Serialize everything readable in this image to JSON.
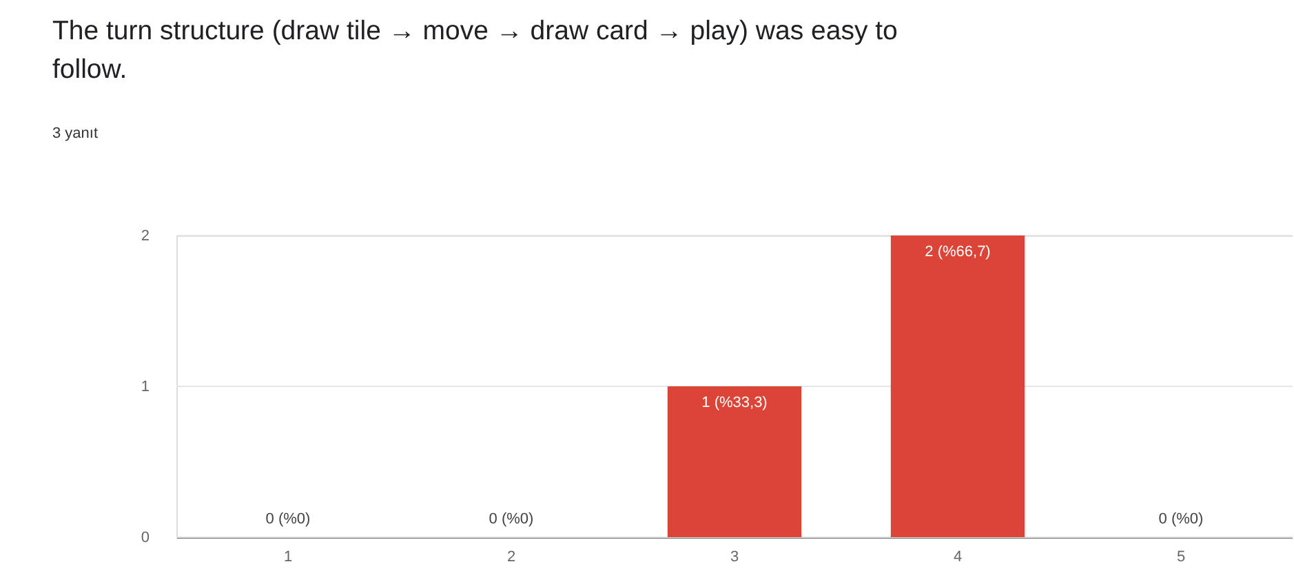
{
  "chart_data": {
    "type": "bar",
    "title": "The turn structure (draw tile → move → draw card → play) was easy to follow.",
    "subtitle": "3 yanıt",
    "categories": [
      "1",
      "2",
      "3",
      "4",
      "5"
    ],
    "values": [
      0,
      0,
      1,
      2,
      0
    ],
    "value_labels": [
      "0 (%0)",
      "0 (%0)",
      "1 (%33,3)",
      "2 (%66,7)",
      "0 (%0)"
    ],
    "color": "#db4437",
    "ylim": [
      0,
      2
    ],
    "yticks": [
      0,
      1,
      2
    ],
    "grid": "y"
  }
}
